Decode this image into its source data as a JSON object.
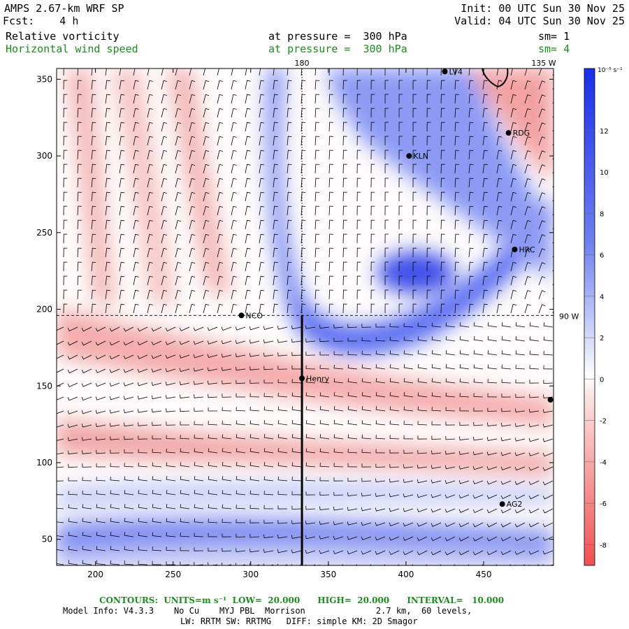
{
  "header": {
    "model": "AMPS 2.67-km WRF SP",
    "init": "Init: 00 UTC Sun 30 Nov 25",
    "fcst": "Fcst:    4 h",
    "valid": "Valid: 04 UTC Sun 30 Nov 25",
    "field1": {
      "name": "Relative vorticity",
      "level": "at pressure =  300 hPa",
      "sm": "sm= 1"
    },
    "field2": {
      "name": "Horizontal wind speed",
      "level": "at pressure =  300 hPa",
      "sm": "sm= 4"
    }
  },
  "map": {
    "x_ticks": [
      "200",
      "250",
      "300",
      "350",
      "400",
      "450"
    ],
    "y_ticks": [
      "50",
      "100",
      "150",
      "200",
      "250",
      "300",
      "350"
    ],
    "x_range": [
      175,
      495
    ],
    "y_range": [
      33,
      357
    ],
    "lon_labels": {
      "top_180": "180",
      "top_135w": "135 W",
      "right_90w": "90 W"
    },
    "meridian_x": 333,
    "parallel_y": 196,
    "cross_section": {
      "x": 333,
      "y_from": 33,
      "y_to": 196
    },
    "stations": [
      {
        "label": "NCO",
        "x": 294,
        "y": 196
      },
      {
        "label": "KLN",
        "x": 402,
        "y": 300
      },
      {
        "label": "RDG",
        "x": 466,
        "y": 315
      },
      {
        "label": "HRC",
        "x": 470,
        "y": 239
      },
      {
        "label": "Henry",
        "x": 333,
        "y": 155
      },
      {
        "label": "AG2",
        "x": 462,
        "y": 73
      },
      {
        "label": "LV4",
        "x": 425,
        "y": 355
      },
      {
        "label": "",
        "x": 493,
        "y": 141
      }
    ]
  },
  "colorbar": {
    "unit": "10⁻⁵ s⁻¹",
    "labels": [
      "12",
      "10",
      "8",
      "6",
      "4",
      "2",
      "0",
      "-2",
      "-4",
      "-6",
      "-8"
    ],
    "range": [
      -9,
      15
    ]
  },
  "footer": {
    "contours": "CONTOURS:  UNITS=m s⁻¹  LOW=  20.000      HIGH=  20.000      INTERVAL=   10.000",
    "model_info": "Model Info: V4.3.3    No Cu    MYJ PBL  Morrison              2.7 km,  60 levels,",
    "physics": "LW: RRTM SW: RRTMG   DIFF: simple KM: 2D Smagor"
  },
  "colors": {
    "positive": "#2233ee",
    "negative": "#ee4444",
    "neutral": "#ffffff",
    "green_text": "#1f8a1f"
  }
}
